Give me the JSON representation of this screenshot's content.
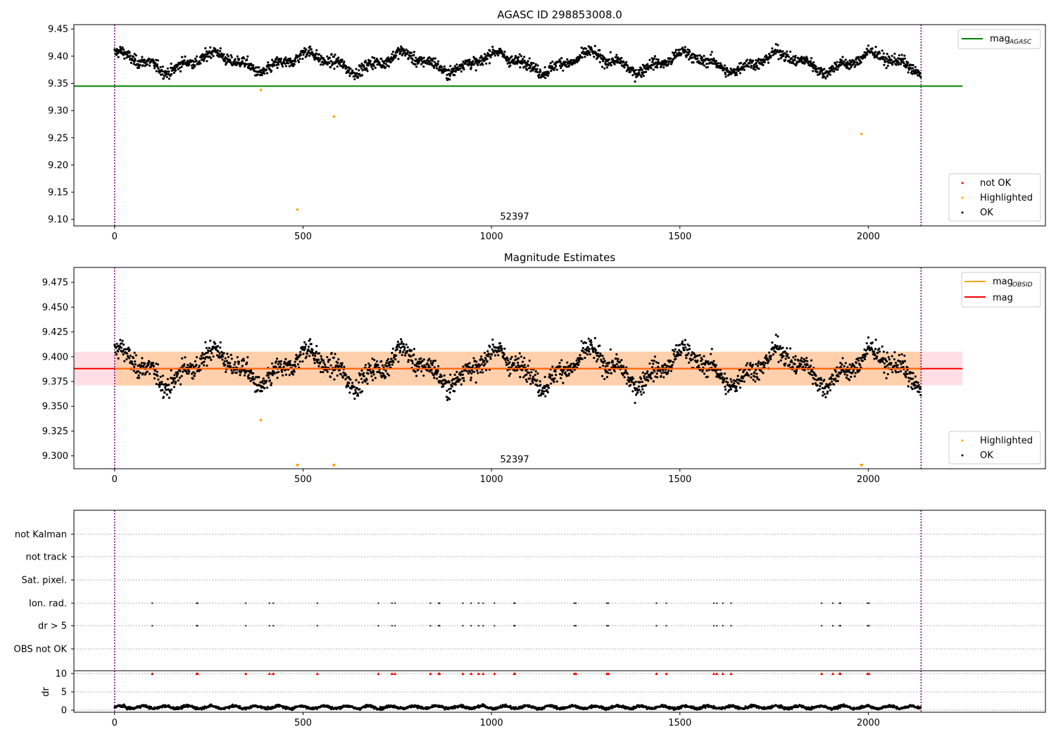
{
  "figure": {
    "panels": [
      {
        "id": "p1",
        "title": "AGASC ID 298853008.0",
        "xlim": [
          -108,
          2470
        ],
        "ylim": [
          9.088,
          9.458
        ],
        "xticks": [
          0,
          500,
          1000,
          1500,
          2000
        ],
        "yticks": [
          9.1,
          9.15,
          9.2,
          9.25,
          9.3,
          9.35,
          9.4,
          9.45
        ],
        "ytick_labels": [
          "9.10",
          "9.15",
          "9.20",
          "9.25",
          "9.30",
          "9.35",
          "9.40",
          "9.45"
        ],
        "annotation": "52397",
        "legend_top": [
          {
            "label": "mag",
            "sub": "AGASC",
            "color": "#008000"
          }
        ],
        "legend_bottom": [
          {
            "label": "not OK",
            "color": "#ff0000"
          },
          {
            "label": "Highlighted",
            "color": "#ffa500"
          },
          {
            "label": "OK",
            "color": "#000000"
          }
        ]
      },
      {
        "id": "p2",
        "title": "Magnitude Estimates",
        "xlim": [
          -108,
          2470
        ],
        "ylim": [
          9.287,
          9.49
        ],
        "xticks": [
          0,
          500,
          1000,
          1500,
          2000
        ],
        "yticks": [
          9.3,
          9.325,
          9.35,
          9.375,
          9.4,
          9.425,
          9.45,
          9.475
        ],
        "ytick_labels": [
          "9.300",
          "9.325",
          "9.350",
          "9.375",
          "9.400",
          "9.425",
          "9.450",
          "9.475"
        ],
        "annotation": "52397",
        "legend_top": [
          {
            "label": "mag",
            "sub": "OBSID",
            "color": "#ffa500"
          },
          {
            "label": "mag",
            "sub": "",
            "color": "#ff0000"
          }
        ],
        "legend_bottom": [
          {
            "label": "Highlighted",
            "color": "#ffa500"
          },
          {
            "label": "OK",
            "color": "#000000"
          }
        ]
      },
      {
        "id": "p3",
        "flag_labels": [
          "not Kalman",
          "not track",
          "Sat. pixel.",
          "Ion. rad.",
          "dr > 5",
          "OBS not OK"
        ],
        "dr_ylabel": "dr",
        "dr_yticks": [
          0,
          5,
          10
        ],
        "xticks": [
          0,
          500,
          1000,
          1500,
          2000
        ]
      }
    ]
  },
  "chart_data": [
    {
      "type": "scatter",
      "title": "AGASC ID 298853008.0",
      "xlabel": "",
      "ylabel": "",
      "xlim": [
        -108,
        2470
      ],
      "ylim": [
        9.088,
        9.458
      ],
      "grid": false,
      "legend_placement": [
        "top-right",
        "bottom-right"
      ],
      "x_range_markers": [
        0,
        2140
      ],
      "lines": [
        {
          "name": "mag_AGASC",
          "y": 9.345,
          "x": [
            -108,
            2250
          ],
          "color": "#008000"
        }
      ],
      "series": [
        {
          "name": "OK",
          "color": "#000000",
          "n": 2140,
          "x_range": [
            0,
            2140
          ],
          "y_range": [
            9.34,
            9.435
          ],
          "note_shape": "slow oscillation around 9.39"
        },
        {
          "name": "Highlighted",
          "color": "#ffa500",
          "points": [
            [
              388,
              9.338
            ],
            [
              485,
              9.118
            ],
            [
              582,
              9.289
            ],
            [
              1982,
              9.257
            ]
          ]
        },
        {
          "name": "not OK",
          "color": "#ff0000",
          "points": []
        }
      ],
      "annotations": [
        {
          "text": "52397"
        }
      ]
    },
    {
      "type": "scatter",
      "title": "Magnitude Estimates",
      "xlim": [
        -108,
        2470
      ],
      "ylim": [
        9.287,
        9.49
      ],
      "grid": false,
      "legend_placement": [
        "top-right",
        "bottom-right"
      ],
      "lines": [
        {
          "name": "mag",
          "y": 9.388,
          "color": "#ff0000"
        }
      ],
      "bands": [
        {
          "y": [
            9.371,
            9.405
          ],
          "x": [
            -108,
            2250
          ],
          "color": "#ffc0cb"
        },
        {
          "y": [
            9.371,
            9.405
          ],
          "x": [
            0,
            2140
          ],
          "color": "#ffa500"
        }
      ],
      "series": [
        {
          "name": "OK",
          "color": "#000000",
          "n": 2140
        },
        {
          "name": "Highlighted",
          "color": "#ffa500",
          "points": [
            [
              388,
              9.336
            ],
            [
              485,
              9.289
            ],
            [
              582,
              9.289
            ],
            [
              1982,
              9.289
            ]
          ]
        }
      ],
      "annotations": [
        {
          "text": "52397"
        }
      ]
    },
    {
      "type": "scatter",
      "flags": [
        "not Kalman",
        "not track",
        "Sat. pixel.",
        "Ion. rad.",
        "dr > 5",
        "OBS not OK"
      ],
      "flag_events_x": [
        100,
        218,
        220,
        348,
        411,
        421,
        538,
        700,
        736,
        744,
        838,
        860,
        862,
        924,
        946,
        966,
        978,
        1008,
        1060,
        1062,
        1220,
        1224,
        1306,
        1310,
        1438,
        1464,
        1590,
        1598,
        1614,
        1636,
        1876,
        1906,
        1924,
        1926,
        1998,
        2002
      ],
      "flag_rows": [
        "Ion. rad.",
        "dr > 5"
      ],
      "dr": {
        "ylabel": "dr",
        "yticks": [
          0,
          5,
          10
        ],
        "typical": [
          0,
          1.8
        ],
        "clipped_value": 10,
        "clip_color": "#ff0000"
      }
    }
  ]
}
